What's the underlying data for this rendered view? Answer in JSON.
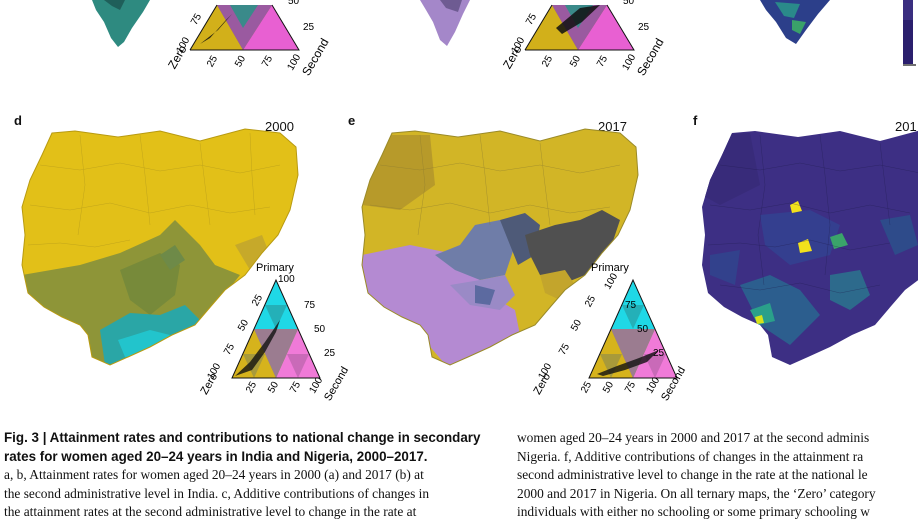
{
  "panels": {
    "d": {
      "letter": "d",
      "year": "2000"
    },
    "e": {
      "letter": "e",
      "year": "2017"
    },
    "f": {
      "letter": "f",
      "year": "201"
    }
  },
  "ternary": {
    "top_label": "Primary",
    "left_label": "Zero",
    "right_label": "Second",
    "tick_top": "100",
    "ticks": [
      "25",
      "50",
      "75"
    ],
    "tick_end": "100"
  },
  "top_ternary": {
    "ticks_left": [
      "75",
      "100"
    ],
    "ticks_bottom": [
      "25",
      "50",
      "75",
      "100"
    ],
    "ticks_right": [
      "50",
      "25"
    ],
    "label_left": "Zero",
    "label_right": "Second"
  },
  "colors": {
    "zero": "#e5c21a",
    "primary": "#1fe6f0",
    "second": "#f07ad8",
    "olive": "#8f9a3a",
    "teal": "#2fb9b4",
    "grey": "#555555",
    "purple": "#b48ad6",
    "viridis_dark": "#3b2a7a",
    "viridis_yellow": "#f2e11c"
  },
  "caption": {
    "title_prefix": "Fig. 3 | ",
    "title": "Attainment rates and contributions to national change in secondary",
    "title2": "rates for women aged 20–24 years in India and Nigeria, 2000–2017.",
    "left_lines": [
      "a, b, Attainment rates for women aged 20–24 years in 2000 (a) and 2017 (b) at",
      "the second administrative level in India. c, Additive contributions of changes in",
      "the attainment rates at the second administrative level to change in the rate at"
    ],
    "right_lines": [
      "women aged 20–24 years in 2000 and 2017 at the second adminis",
      "Nigeria. f, Additive contributions of changes in the attainment ra",
      "second administrative level to change in the rate at the national le",
      "2000 and 2017 in Nigeria. On all ternary maps, the ‘Zero’ category",
      "individuals with either no schooling or some primary schooling w"
    ]
  }
}
